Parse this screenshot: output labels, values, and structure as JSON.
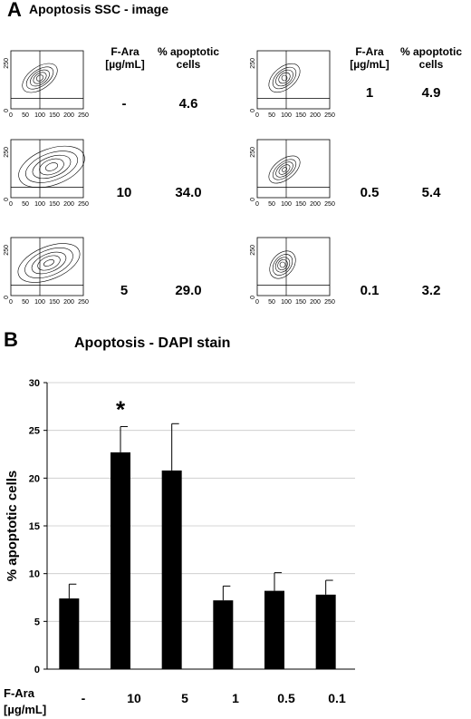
{
  "panel_a": {
    "letter": "A",
    "title": "Apoptosis SSC - image",
    "header_fara_line1": "F-Ara",
    "header_fara_line2": "[µg/mL]",
    "header_pct_line1": "% apoptotic",
    "header_pct_line2": "cells",
    "axis_ticks_y": [
      "0",
      "250"
    ],
    "axis_ticks_x": [
      "0",
      "50",
      "100",
      "150",
      "200",
      "250"
    ],
    "rows_left": [
      {
        "fara": "-",
        "pct": "4.6"
      },
      {
        "fara": "10",
        "pct": "34.0"
      },
      {
        "fara": "5",
        "pct": "29.0"
      }
    ],
    "rows_right": [
      {
        "fara": "1",
        "pct": "4.9"
      },
      {
        "fara": "0.5",
        "pct": "5.4"
      },
      {
        "fara": "0.1",
        "pct": "3.2"
      }
    ]
  },
  "panel_b": {
    "letter": "B",
    "title": "Apoptosis - DAPI stain",
    "xlabel_line1": "F-Ara",
    "xlabel_line2": "[µg/mL]"
  },
  "chart_data": {
    "type": "bar",
    "title": "Apoptosis - DAPI stain",
    "ylabel": "% apoptotic cells",
    "xlabel": "F-Ara [µg/mL]",
    "categories": [
      "-",
      "10",
      "5",
      "1",
      "0.5",
      "0.1"
    ],
    "values": [
      7.4,
      22.7,
      20.8,
      7.2,
      8.2,
      7.8
    ],
    "error_plus": [
      1.5,
      2.7,
      4.9,
      1.5,
      1.9,
      1.5
    ],
    "ylim": [
      0,
      30
    ],
    "yticks": [
      0,
      5,
      10,
      15,
      20,
      25,
      30
    ],
    "grid": true,
    "significance": {
      "category": "10",
      "marker": "*"
    },
    "bar_color": "#000000"
  }
}
